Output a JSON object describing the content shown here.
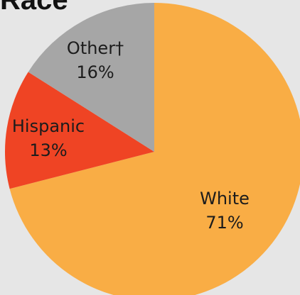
{
  "chart_data": {
    "type": "pie",
    "title": "Race",
    "slices": [
      {
        "label": "White",
        "value": 71,
        "value_label": "71%",
        "color": "#f9ad45"
      },
      {
        "label": "Hispanic",
        "value": 13,
        "value_label": "13%",
        "color": "#ef4424"
      },
      {
        "label": "Other†",
        "value": 16,
        "value_label": "16%",
        "color": "#a6a6a6"
      }
    ],
    "start_angle": "12 o'clock",
    "direction": "clockwise",
    "background": "#e6e6e6"
  }
}
